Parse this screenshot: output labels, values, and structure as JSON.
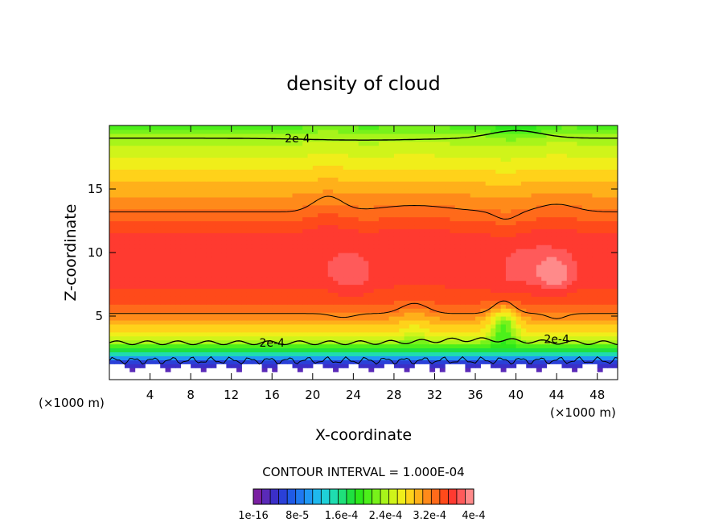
{
  "chart_data": {
    "type": "heatmap",
    "title": "density of cloud",
    "xlabel": "X-coordinate",
    "ylabel": "Z-coordinate",
    "x_unit_left": "(×1000 m)",
    "x_unit_right": "(×1000 m)",
    "xlim": [
      0,
      50
    ],
    "ylim": [
      0,
      20
    ],
    "x_ticks": [
      4,
      8,
      12,
      16,
      20,
      24,
      28,
      32,
      36,
      40,
      44,
      48
    ],
    "y_ticks": [
      5,
      10,
      15
    ],
    "contour_interval_text": "CONTOUR INTERVAL = 1.000E-04",
    "contour_labels": [
      {
        "text": "2e-4",
        "x": 18.5,
        "z": 19.0
      },
      {
        "text": "2e-4",
        "x": 16.0,
        "z": 2.9
      },
      {
        "text": "2e-4",
        "x": 44.0,
        "z": 3.2
      }
    ],
    "colorbar": {
      "colors": [
        "#7a1fa2",
        "#5a2ab8",
        "#3b2fc8",
        "#2a40d8",
        "#1f5ae6",
        "#1f78f0",
        "#1f98f4",
        "#1fb8ee",
        "#1fd0d8",
        "#1fdcb0",
        "#1fe07a",
        "#1fe040",
        "#2ce81a",
        "#4cf01a",
        "#78f21a",
        "#a8f41a",
        "#d0f41a",
        "#f0ee1a",
        "#ffd21a",
        "#ffb01a",
        "#ff8a1a",
        "#ff6a1a",
        "#ff4a1a",
        "#ff3a30",
        "#ff5a5a",
        "#ff8a8a"
      ],
      "tick_labels": [
        "1e-16",
        "8e-5",
        "1.6e-4",
        "2.4e-4",
        "3.2e-4",
        "4e-4"
      ]
    },
    "profile": [
      {
        "z": 1.0,
        "level": 1
      },
      {
        "z": 1.5,
        "level": 4
      },
      {
        "z": 2.0,
        "level": 9
      },
      {
        "z": 2.5,
        "level": 12
      },
      {
        "z": 3.0,
        "level": 15
      },
      {
        "z": 3.5,
        "level": 17
      },
      {
        "z": 4.0,
        "level": 18
      },
      {
        "z": 4.5,
        "level": 19
      },
      {
        "z": 5.0,
        "level": 20
      },
      {
        "z": 5.5,
        "level": 21
      },
      {
        "z": 6.5,
        "level": 22
      },
      {
        "z": 8.0,
        "level": 23
      },
      {
        "z": 11.0,
        "level": 23
      },
      {
        "z": 12.0,
        "level": 22
      },
      {
        "z": 13.0,
        "level": 21
      },
      {
        "z": 14.0,
        "level": 20
      },
      {
        "z": 15.0,
        "level": 19
      },
      {
        "z": 16.0,
        "level": 18
      },
      {
        "z": 17.0,
        "level": 17
      },
      {
        "z": 18.0,
        "level": 16
      },
      {
        "z": 19.0,
        "level": 15
      },
      {
        "z": 20.0,
        "level": 13
      }
    ]
  }
}
